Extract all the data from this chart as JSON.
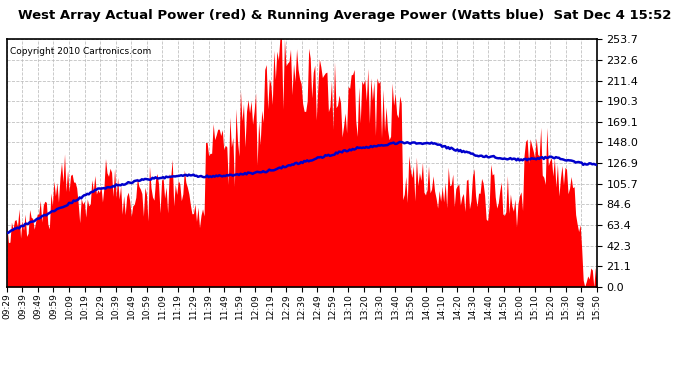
{
  "title": "West Array Actual Power (red) & Running Average Power (Watts blue)  Sat Dec 4 15:52",
  "copyright": "Copyright 2010 Cartronics.com",
  "yticks": [
    0.0,
    21.1,
    42.3,
    63.4,
    84.6,
    105.7,
    126.9,
    148.0,
    169.1,
    190.3,
    211.4,
    232.6,
    253.7
  ],
  "ylim": [
    0.0,
    253.7
  ],
  "background_color": "#ffffff",
  "bar_color": "#ff0000",
  "line_color": "#0000cc",
  "grid_color": "#bbbbbb",
  "title_fontsize": 11,
  "x_labels": [
    "09:29",
    "09:39",
    "09:49",
    "09:59",
    "10:09",
    "10:19",
    "10:29",
    "10:39",
    "10:49",
    "10:59",
    "11:09",
    "11:19",
    "11:29",
    "11:39",
    "11:49",
    "11:59",
    "12:09",
    "12:19",
    "12:29",
    "12:39",
    "12:49",
    "12:59",
    "13:10",
    "13:20",
    "13:30",
    "13:40",
    "13:50",
    "14:00",
    "14:10",
    "14:20",
    "14:30",
    "14:40",
    "14:50",
    "15:00",
    "15:10",
    "15:20",
    "15:30",
    "15:40",
    "15:50"
  ]
}
